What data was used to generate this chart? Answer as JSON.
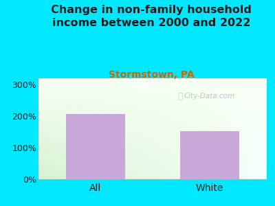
{
  "title": "Change in non-family household\nincome between 2000 and 2022",
  "subtitle": "Stormstown, PA",
  "categories": [
    "All",
    "White"
  ],
  "values": [
    207,
    152
  ],
  "bar_color": "#c8a8d8",
  "title_color": "#1a1a1a",
  "subtitle_color": "#cc6600",
  "tick_color": "#1a1a1a",
  "tick_labels": [
    "0%",
    "100%",
    "200%",
    "300%"
  ],
  "tick_values": [
    0,
    100,
    200,
    300
  ],
  "ylim": [
    0,
    320
  ],
  "background_outer": "#00e8ff",
  "watermark": "City-Data.com",
  "title_fontsize": 11.5,
  "subtitle_fontsize": 10,
  "tick_fontsize": 9,
  "xlabel_fontsize": 10
}
